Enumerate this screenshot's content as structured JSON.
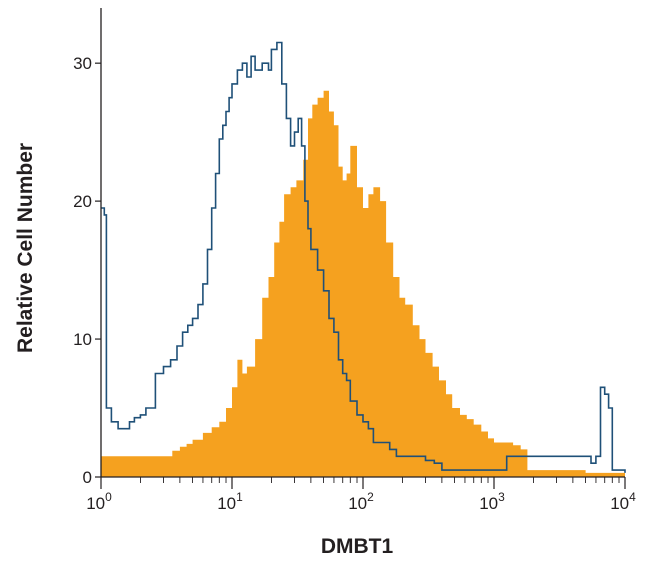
{
  "chart_data": {
    "type": "area",
    "title": "",
    "xlabel": "DMBT1",
    "ylabel": "Relative Cell Number",
    "x_scale": "log",
    "xlim": [
      1,
      10000
    ],
    "ylim": [
      0,
      34
    ],
    "x_ticks": [
      {
        "value": 1,
        "base": "10",
        "exp": "0"
      },
      {
        "value": 10,
        "base": "10",
        "exp": "1"
      },
      {
        "value": 100,
        "base": "10",
        "exp": "2"
      },
      {
        "value": 1000,
        "base": "10",
        "exp": "3"
      },
      {
        "value": 10000,
        "base": "10",
        "exp": "4"
      }
    ],
    "y_ticks": [
      {
        "value": 0,
        "label": "0"
      },
      {
        "value": 10,
        "label": "10"
      },
      {
        "value": 20,
        "label": "20"
      },
      {
        "value": 30,
        "label": "30"
      }
    ],
    "grid": false,
    "series": [
      {
        "style": "filled",
        "color": "#f5a11f",
        "points": [
          [
            1.0,
            1.5
          ],
          [
            1.3,
            1.5
          ],
          [
            1.6,
            1.5
          ],
          [
            2.0,
            1.5
          ],
          [
            2.5,
            1.5
          ],
          [
            3.0,
            1.5
          ],
          [
            3.5,
            1.9
          ],
          [
            4.0,
            2.2
          ],
          [
            4.5,
            2.4
          ],
          [
            5.0,
            2.7
          ],
          [
            6.0,
            3.2
          ],
          [
            7.0,
            3.6
          ],
          [
            8.0,
            4.0
          ],
          [
            9.0,
            5.0
          ],
          [
            10.0,
            6.5
          ],
          [
            11.0,
            8.5
          ],
          [
            12.0,
            7.5
          ],
          [
            13.0,
            8.0
          ],
          [
            15.0,
            10.0
          ],
          [
            17.0,
            13.0
          ],
          [
            19.0,
            14.5
          ],
          [
            21.0,
            17.0
          ],
          [
            23.0,
            18.5
          ],
          [
            25.0,
            20.5
          ],
          [
            28.0,
            21.0
          ],
          [
            31.0,
            21.5
          ],
          [
            35.0,
            23.0
          ],
          [
            38.0,
            26.0
          ],
          [
            41.0,
            27.0
          ],
          [
            45.0,
            27.5
          ],
          [
            50.0,
            28.0
          ],
          [
            55.0,
            26.5
          ],
          [
            60.0,
            25.5
          ],
          [
            65.0,
            22.5
          ],
          [
            70.0,
            21.5
          ],
          [
            75.0,
            22.0
          ],
          [
            80.0,
            24.0
          ],
          [
            90.0,
            21.0
          ],
          [
            100.0,
            19.5
          ],
          [
            110.0,
            20.5
          ],
          [
            120.0,
            21.0
          ],
          [
            135.0,
            20.0
          ],
          [
            150.0,
            17.0
          ],
          [
            170.0,
            14.5
          ],
          [
            190.0,
            13.0
          ],
          [
            210.0,
            12.5
          ],
          [
            240.0,
            11.0
          ],
          [
            270.0,
            10.0
          ],
          [
            300.0,
            9.0
          ],
          [
            340.0,
            8.0
          ],
          [
            380.0,
            7.0
          ],
          [
            430.0,
            6.0
          ],
          [
            480.0,
            5.0
          ],
          [
            550.0,
            4.5
          ],
          [
            620.0,
            4.2
          ],
          [
            700.0,
            3.8
          ],
          [
            800.0,
            3.3
          ],
          [
            900.0,
            2.8
          ],
          [
            1000.0,
            2.5
          ],
          [
            1200.0,
            2.5
          ],
          [
            1400.0,
            2.3
          ],
          [
            1600.0,
            2.0
          ],
          [
            1800.0,
            0.5
          ],
          [
            2500.0,
            0.5
          ],
          [
            5000.0,
            0.3
          ],
          [
            10000.0,
            0.2
          ]
        ]
      },
      {
        "style": "outline",
        "color": "#1f5078",
        "points": [
          [
            1.0,
            19.5
          ],
          [
            1.06,
            19.0
          ],
          [
            1.1,
            5.0
          ],
          [
            1.2,
            4.0
          ],
          [
            1.35,
            3.5
          ],
          [
            1.5,
            3.5
          ],
          [
            1.65,
            4.0
          ],
          [
            1.8,
            4.3
          ],
          [
            2.0,
            4.5
          ],
          [
            2.2,
            5.0
          ],
          [
            2.4,
            5.0
          ],
          [
            2.6,
            7.5
          ],
          [
            3.0,
            8.0
          ],
          [
            3.4,
            8.5
          ],
          [
            3.8,
            9.5
          ],
          [
            4.2,
            10.5
          ],
          [
            4.6,
            11.0
          ],
          [
            5.0,
            11.5
          ],
          [
            5.5,
            12.5
          ],
          [
            6.0,
            14.0
          ],
          [
            6.5,
            16.5
          ],
          [
            7.0,
            19.5
          ],
          [
            7.5,
            22.0
          ],
          [
            8.0,
            24.5
          ],
          [
            8.5,
            25.5
          ],
          [
            9.0,
            26.5
          ],
          [
            9.5,
            27.5
          ],
          [
            10.0,
            28.5
          ],
          [
            11.0,
            29.5
          ],
          [
            12.0,
            30.0
          ],
          [
            13.0,
            29.0
          ],
          [
            14.0,
            30.5
          ],
          [
            15.0,
            29.5
          ],
          [
            17.0,
            30.0
          ],
          [
            19.0,
            29.5
          ],
          [
            20.0,
            31.0
          ],
          [
            22.0,
            31.5
          ],
          [
            24.0,
            28.5
          ],
          [
            26.0,
            26.0
          ],
          [
            28.0,
            24.0
          ],
          [
            30.0,
            25.0
          ],
          [
            32.0,
            26.0
          ],
          [
            34.0,
            24.0
          ],
          [
            36.0,
            20.0
          ],
          [
            38.0,
            18.0
          ],
          [
            40.0,
            16.5
          ],
          [
            45.0,
            15.0
          ],
          [
            50.0,
            13.5
          ],
          [
            55.0,
            11.5
          ],
          [
            60.0,
            10.5
          ],
          [
            65.0,
            8.5
          ],
          [
            70.0,
            7.5
          ],
          [
            75.0,
            7.0
          ],
          [
            80.0,
            5.5
          ],
          [
            85.0,
            5.5
          ],
          [
            90.0,
            4.5
          ],
          [
            100.0,
            4.0
          ],
          [
            110.0,
            3.5
          ],
          [
            120.0,
            2.5
          ],
          [
            140.0,
            2.5
          ],
          [
            160.0,
            2.0
          ],
          [
            180.0,
            1.5
          ],
          [
            200.0,
            1.5
          ],
          [
            250.0,
            1.5
          ],
          [
            300.0,
            1.2
          ],
          [
            350.0,
            1.0
          ],
          [
            400.0,
            0.5
          ],
          [
            450.0,
            0.5
          ],
          [
            550.0,
            0.5
          ],
          [
            700.0,
            0.5
          ],
          [
            900.0,
            0.5
          ],
          [
            1100.0,
            0.5
          ],
          [
            1250.0,
            1.5
          ],
          [
            1400.0,
            1.5
          ],
          [
            1600.0,
            1.5
          ],
          [
            2000.0,
            1.5
          ],
          [
            2500.0,
            1.5
          ],
          [
            3000.0,
            1.5
          ],
          [
            3500.0,
            1.5
          ],
          [
            4000.0,
            1.5
          ],
          [
            4500.0,
            1.5
          ],
          [
            5000.0,
            1.5
          ],
          [
            5500.0,
            1.0
          ],
          [
            6000.0,
            1.5
          ],
          [
            6500.0,
            6.5
          ],
          [
            7000.0,
            6.0
          ],
          [
            7500.0,
            5.0
          ],
          [
            8000.0,
            0.5
          ],
          [
            9000.0,
            0.5
          ],
          [
            10000.0,
            0.3
          ]
        ]
      }
    ]
  }
}
